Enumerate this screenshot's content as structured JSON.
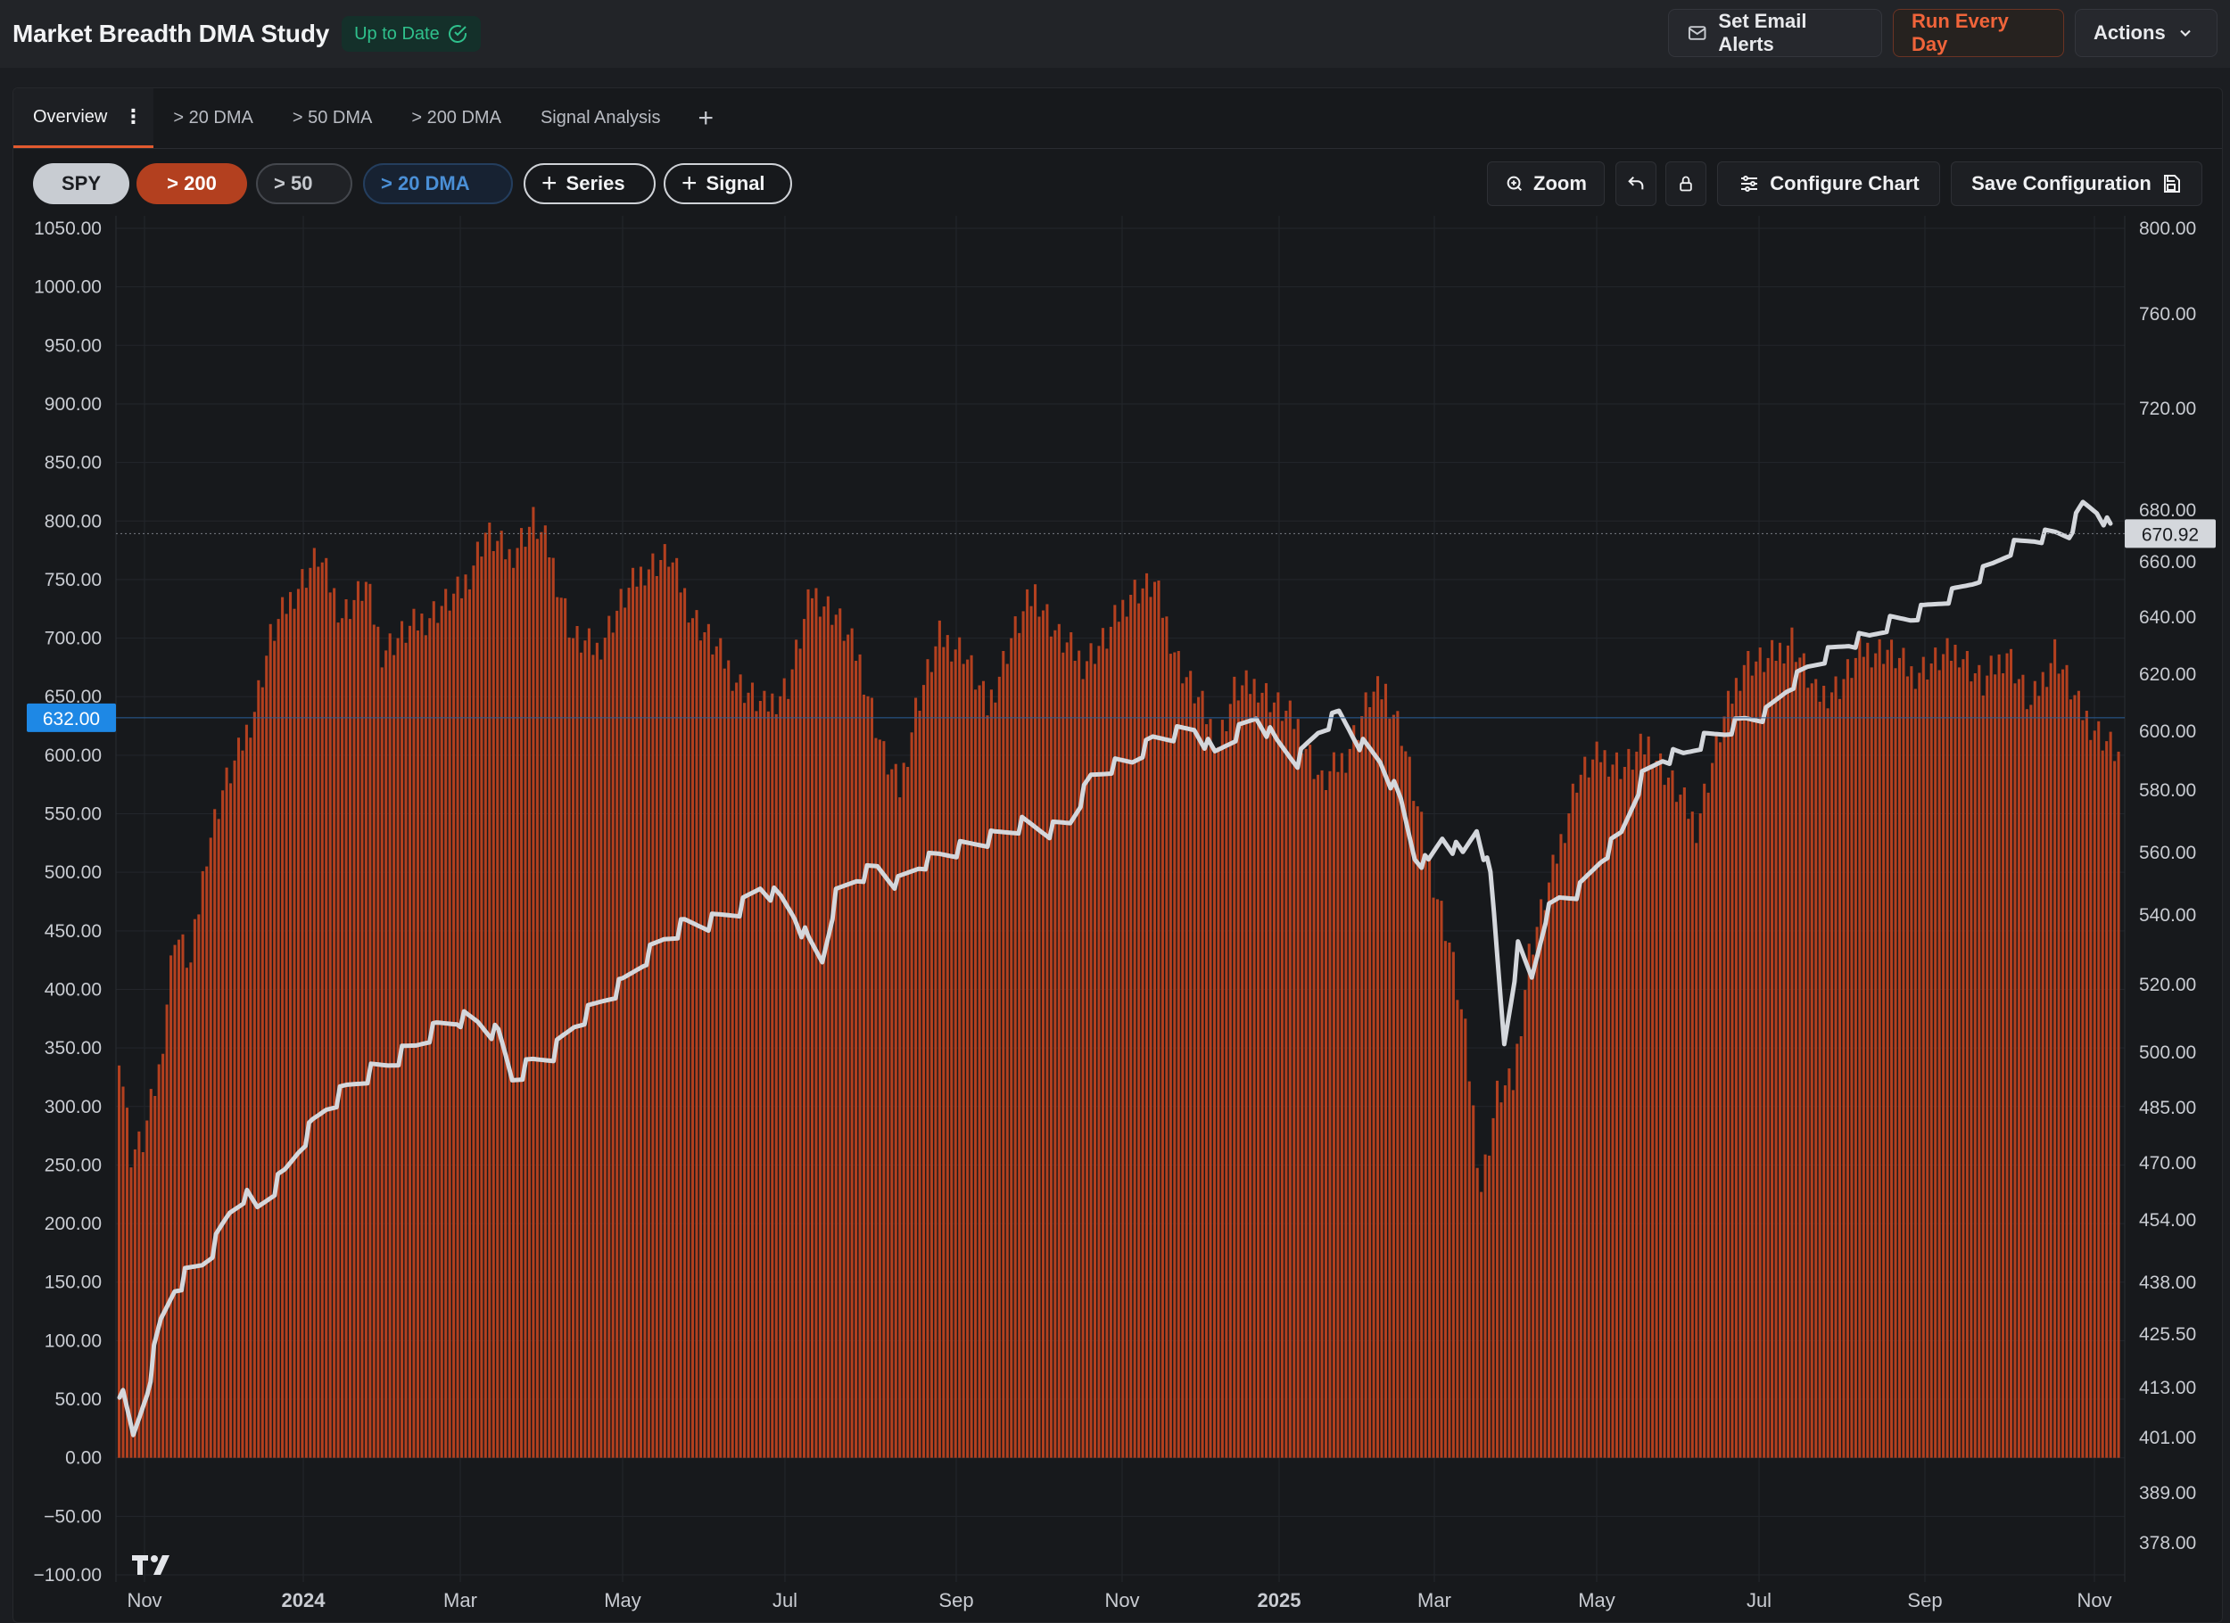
{
  "header": {
    "title": "Market Breadth DMA Study",
    "status_badge": "Up to Date",
    "buttons": {
      "email_alerts": "Set Email Alerts",
      "run": "Run Every Day",
      "actions": "Actions"
    }
  },
  "tabs": [
    {
      "label": "Overview",
      "active": true
    },
    {
      "label": "> 20 DMA"
    },
    {
      "label": "> 50 DMA"
    },
    {
      "label": "> 200 DMA"
    },
    {
      "label": "Signal Analysis"
    }
  ],
  "toolbar": {
    "series_pills": [
      "SPY",
      "> 200",
      "> 50",
      "> 20 DMA"
    ],
    "add_series": "Series",
    "add_signal": "Signal",
    "zoom": "Zoom",
    "configure": "Configure Chart",
    "save": "Save Configuration"
  },
  "colors": {
    "bars": "#b3401f",
    "line": "#d4d7dc",
    "badge_text": "#2fc08c",
    "accent": "#e25a2f",
    "crosshair_label": "#1e88e5"
  },
  "icons": [
    "mail-icon",
    "chevron-down-icon",
    "check-circle-icon",
    "kebab-icon",
    "plus-icon",
    "zoom-icon",
    "undo-icon",
    "lock-icon",
    "sliders-icon",
    "save-icon",
    "tradingview-logo"
  ],
  "chart_data": {
    "type": "bar+line",
    "left_axis": {
      "ticks": [
        "1050.00",
        "1000.00",
        "950.00",
        "900.00",
        "850.00",
        "800.00",
        "750.00",
        "700.00",
        "650.00",
        "600.00",
        "550.00",
        "500.00",
        "450.00",
        "400.00",
        "350.00",
        "300.00",
        "250.00",
        "200.00",
        "150.00",
        "100.00",
        "50.00",
        "0.00",
        "−50.00",
        "−100.00"
      ],
      "range": [
        -100,
        1050
      ]
    },
    "right_axis": {
      "ticks": [
        "800.00",
        "760.00",
        "720.00",
        "680.00",
        "660.00",
        "640.00",
        "620.00",
        "600.00",
        "580.00",
        "560.00",
        "540.00",
        "520.00",
        "500.00",
        "485.00",
        "470.00",
        "454.00",
        "438.00",
        "425.50",
        "413.00",
        "401.00",
        "389.00",
        "378.00"
      ],
      "range": [
        378,
        800
      ]
    },
    "x_ticks": [
      "Nov",
      "2024",
      "Mar",
      "May",
      "Jul",
      "Sep",
      "Nov",
      "2025",
      "Mar",
      "May",
      "Jul",
      "Sep",
      "Nov"
    ],
    "crosshair_left_label": "632.00",
    "last_price_label": "670.92",
    "series": [
      {
        "name": "> 200",
        "kind": "bars",
        "axis": "left",
        "anchor_values": [
          [
            0,
            350
          ],
          [
            3,
            260
          ],
          [
            6,
            270
          ],
          [
            10,
            330
          ],
          [
            14,
            450
          ],
          [
            18,
            420
          ],
          [
            22,
            520
          ],
          [
            26,
            570
          ],
          [
            30,
            600
          ],
          [
            34,
            640
          ],
          [
            38,
            700
          ],
          [
            44,
            740
          ],
          [
            50,
            770
          ],
          [
            56,
            720
          ],
          [
            62,
            745
          ],
          [
            66,
            690
          ],
          [
            72,
            705
          ],
          [
            78,
            720
          ],
          [
            86,
            740
          ],
          [
            92,
            790
          ],
          [
            98,
            770
          ],
          [
            104,
            800
          ],
          [
            108,
            775
          ],
          [
            114,
            700
          ],
          [
            120,
            690
          ],
          [
            126,
            730
          ],
          [
            132,
            760
          ],
          [
            138,
            770
          ],
          [
            144,
            720
          ],
          [
            150,
            690
          ],
          [
            156,
            660
          ],
          [
            162,
            640
          ],
          [
            168,
            660
          ],
          [
            174,
            740
          ],
          [
            180,
            720
          ],
          [
            186,
            680
          ],
          [
            192,
            600
          ],
          [
            196,
            570
          ],
          [
            200,
            640
          ],
          [
            206,
            700
          ],
          [
            212,
            690
          ],
          [
            218,
            640
          ],
          [
            224,
            700
          ],
          [
            230,
            740
          ],
          [
            236,
            700
          ],
          [
            242,
            680
          ],
          [
            248,
            700
          ],
          [
            254,
            740
          ],
          [
            260,
            745
          ],
          [
            266,
            680
          ],
          [
            272,
            640
          ],
          [
            276,
            610
          ],
          [
            280,
            655
          ],
          [
            286,
            660
          ],
          [
            290,
            645
          ],
          [
            296,
            625
          ],
          [
            302,
            575
          ],
          [
            308,
            600
          ],
          [
            314,
            650
          ],
          [
            318,
            655
          ],
          [
            322,
            620
          ],
          [
            328,
            520
          ],
          [
            334,
            440
          ],
          [
            338,
            360
          ],
          [
            342,
            230
          ],
          [
            346,
            310
          ],
          [
            350,
            320
          ],
          [
            354,
            430
          ],
          [
            360,
            500
          ],
          [
            366,
            580
          ],
          [
            372,
            600
          ],
          [
            378,
            590
          ],
          [
            384,
            610
          ],
          [
            390,
            575
          ],
          [
            396,
            540
          ],
          [
            402,
            620
          ],
          [
            408,
            680
          ],
          [
            414,
            680
          ],
          [
            420,
            700
          ],
          [
            426,
            650
          ],
          [
            432,
            660
          ],
          [
            438,
            690
          ],
          [
            444,
            690
          ],
          [
            450,
            670
          ],
          [
            456,
            680
          ],
          [
            462,
            690
          ],
          [
            468,
            660
          ],
          [
            474,
            690
          ],
          [
            480,
            640
          ],
          [
            486,
            690
          ],
          [
            492,
            640
          ],
          [
            497,
            620
          ],
          [
            502,
            600
          ]
        ]
      },
      {
        "name": "SPY",
        "kind": "line",
        "axis": "right",
        "anchor_values": [
          [
            0,
            413
          ],
          [
            4,
            401
          ],
          [
            8,
            413
          ],
          [
            12,
            428
          ],
          [
            16,
            437
          ],
          [
            20,
            440
          ],
          [
            24,
            443
          ],
          [
            28,
            448
          ],
          [
            32,
            456
          ],
          [
            36,
            461
          ],
          [
            40,
            457
          ],
          [
            44,
            462
          ],
          [
            48,
            467
          ],
          [
            52,
            474
          ],
          [
            56,
            480
          ],
          [
            60,
            485
          ],
          [
            66,
            490
          ],
          [
            72,
            494
          ],
          [
            78,
            497
          ],
          [
            86,
            502
          ],
          [
            92,
            507
          ],
          [
            98,
            510
          ],
          [
            104,
            509
          ],
          [
            110,
            505
          ],
          [
            114,
            493
          ],
          [
            120,
            497
          ],
          [
            126,
            500
          ],
          [
            132,
            508
          ],
          [
            140,
            515
          ],
          [
            146,
            520
          ],
          [
            152,
            527
          ],
          [
            158,
            533
          ],
          [
            164,
            537
          ],
          [
            172,
            538
          ],
          [
            180,
            542
          ],
          [
            186,
            549
          ],
          [
            192,
            545
          ],
          [
            196,
            540
          ],
          [
            200,
            532
          ],
          [
            204,
            527
          ],
          [
            208,
            546
          ],
          [
            214,
            552
          ],
          [
            220,
            555
          ],
          [
            226,
            550
          ],
          [
            232,
            556
          ],
          [
            238,
            559
          ],
          [
            246,
            562
          ],
          [
            254,
            565
          ],
          [
            262,
            569
          ],
          [
            270,
            567
          ],
          [
            276,
            570
          ],
          [
            282,
            584
          ],
          [
            288,
            588
          ],
          [
            294,
            590
          ],
          [
            300,
            597
          ],
          [
            306,
            599
          ],
          [
            312,
            601
          ],
          [
            318,
            592
          ],
          [
            324,
            599
          ],
          [
            330,
            605
          ],
          [
            336,
            596
          ],
          [
            342,
            590
          ],
          [
            348,
            600
          ],
          [
            354,
            606
          ],
          [
            360,
            596
          ],
          [
            366,
            590
          ],
          [
            372,
            576
          ],
          [
            376,
            559
          ],
          [
            380,
            556
          ],
          [
            384,
            565
          ],
          [
            390,
            559
          ],
          [
            394,
            568
          ],
          [
            398,
            552
          ],
          [
            402,
            503
          ],
          [
            406,
            530
          ],
          [
            410,
            522
          ],
          [
            414,
            540
          ],
          [
            418,
            545
          ],
          [
            424,
            548
          ],
          [
            430,
            558
          ],
          [
            436,
            566
          ],
          [
            442,
            584
          ],
          [
            448,
            591
          ],
          [
            454,
            592
          ],
          [
            460,
            597
          ],
          [
            466,
            600
          ],
          [
            472,
            604
          ],
          [
            478,
            606
          ],
          [
            484,
            615
          ],
          [
            490,
            622
          ],
          [
            496,
            627
          ],
          [
            502,
            631
          ],
          [
            508,
            633
          ],
          [
            514,
            638
          ],
          [
            520,
            640
          ],
          [
            526,
            644
          ],
          [
            532,
            648
          ],
          [
            538,
            653
          ],
          [
            544,
            659
          ],
          [
            550,
            666
          ],
          [
            556,
            669
          ],
          [
            562,
            671
          ],
          [
            566,
            671
          ],
          [
            570,
            682
          ],
          [
            574,
            680
          ],
          [
            578,
            673
          ]
        ]
      }
    ]
  }
}
